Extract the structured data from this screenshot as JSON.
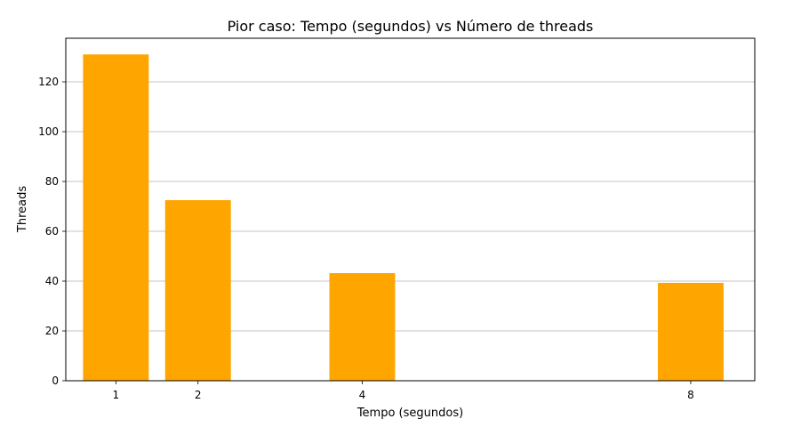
{
  "chart_data": {
    "type": "bar",
    "title": "Pior caso: Tempo (segundos) vs Número de threads",
    "xlabel": "Tempo (segundos)",
    "ylabel": "Threads",
    "categories": [
      1,
      2,
      4,
      8
    ],
    "values": [
      131,
      72.5,
      43.2,
      39.3
    ],
    "xticks": [
      "1",
      "2",
      "4",
      "8"
    ],
    "yticks": [
      0,
      20,
      40,
      60,
      80,
      100,
      120
    ],
    "xlim": [
      0.39,
      8.78
    ],
    "ylim": [
      0,
      137.5
    ],
    "bar_width": 0.8,
    "bar_color": "#FFA500",
    "grid": "y",
    "legend": "none"
  }
}
